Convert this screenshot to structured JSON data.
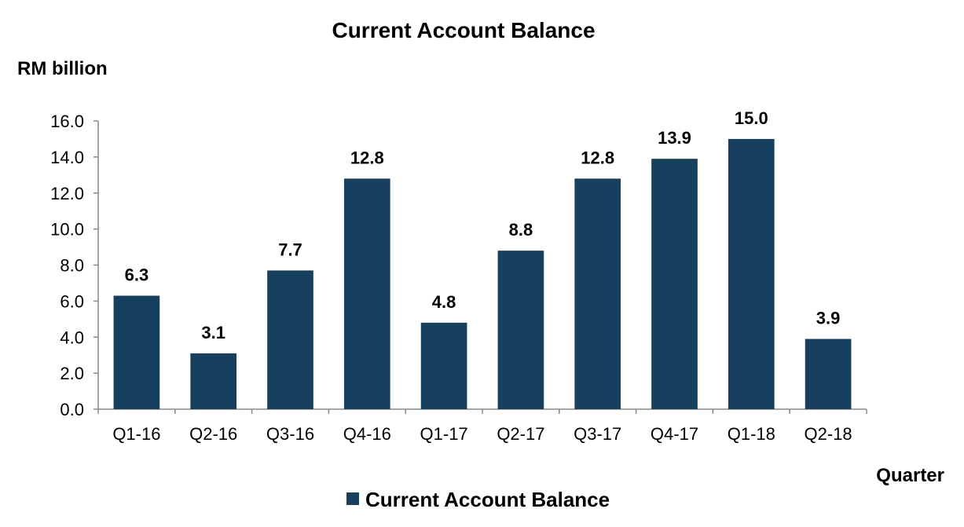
{
  "chart_data": {
    "type": "bar",
    "title": "Current Account Balance",
    "ylabel": "RM billion",
    "xlabel": "Quarter",
    "categories": [
      "Q1-16",
      "Q2-16",
      "Q3-16",
      "Q4-16",
      "Q1-17",
      "Q2-17",
      "Q3-17",
      "Q4-17",
      "Q1-18",
      "Q2-18"
    ],
    "series": [
      {
        "name": "Current Account Balance",
        "values": [
          6.3,
          3.1,
          7.7,
          12.8,
          4.8,
          8.8,
          12.8,
          13.9,
          15.0,
          3.9
        ],
        "data_labels": [
          "6.3",
          "3.1",
          "7.7",
          "12.8",
          "4.8",
          "8.8",
          "12.8",
          "13.9",
          "15.0",
          "3.9"
        ],
        "color": "#17405f"
      }
    ],
    "ylim": [
      0,
      16
    ],
    "yticks": [
      0,
      2,
      4,
      6,
      8,
      10,
      12,
      14,
      16
    ],
    "ytick_labels": [
      "0.0",
      "2.0",
      "4.0",
      "6.0",
      "8.0",
      "10.0",
      "12.0",
      "14.0",
      "16.0"
    ],
    "grid": false,
    "legend_position": "bottom"
  }
}
